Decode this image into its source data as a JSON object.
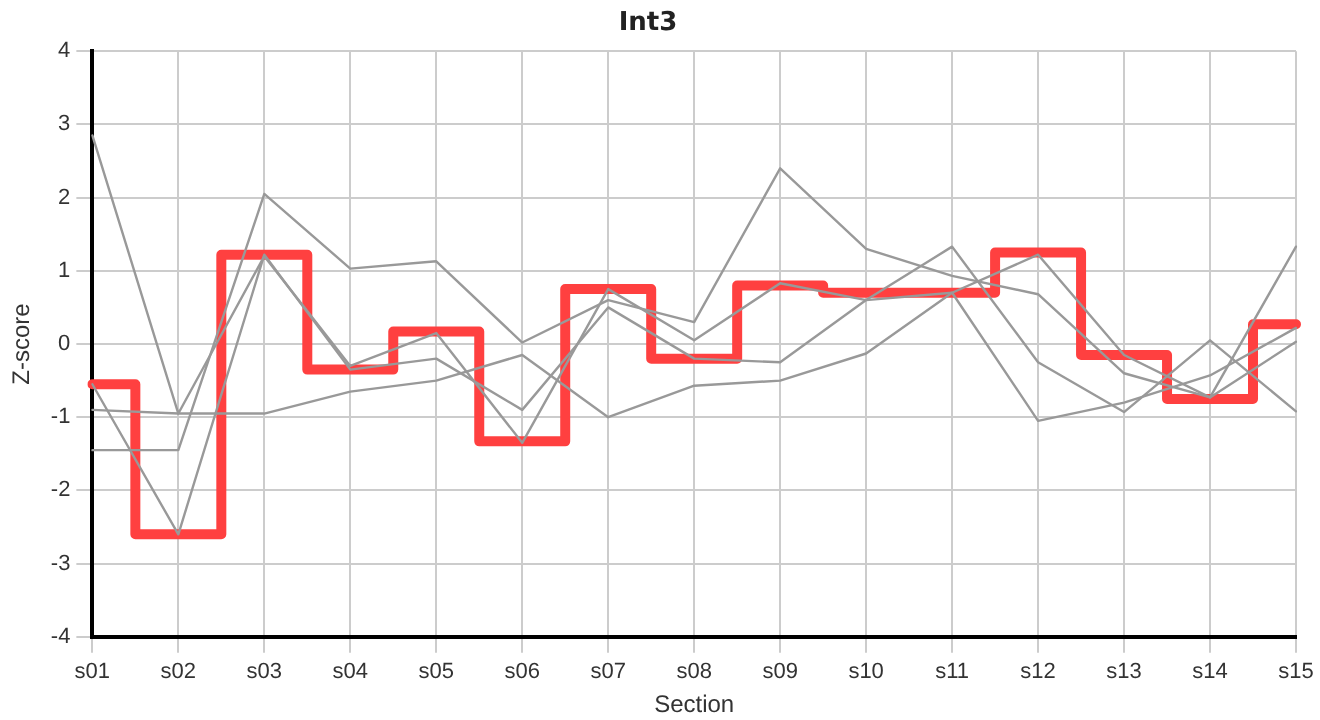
{
  "chart_data": {
    "type": "line",
    "title": "Int3",
    "xlabel": "Section",
    "ylabel": "Z-score",
    "categories": [
      "s01",
      "s02",
      "s03",
      "s04",
      "s05",
      "s06",
      "s07",
      "s08",
      "s09",
      "s10",
      "s11",
      "s12",
      "s13",
      "s14",
      "s15"
    ],
    "series": [
      {
        "color": "#999999",
        "values": [
          2.85,
          -0.95,
          1.2,
          -0.3,
          0.15,
          -1.35,
          0.75,
          0.05,
          0.83,
          0.6,
          0.7,
          1.22,
          -0.15,
          -0.73,
          0.03
        ]
      },
      {
        "color": "#999999",
        "values": [
          -1.45,
          -1.45,
          2.05,
          1.03,
          1.13,
          0.02,
          0.6,
          0.3,
          2.4,
          1.3,
          0.93,
          0.68,
          -0.4,
          -0.73,
          1.33
        ]
      },
      {
        "color": "#999999",
        "values": [
          -0.55,
          -2.6,
          1.22,
          -0.35,
          -0.2,
          -0.9,
          0.5,
          -0.2,
          -0.25,
          0.6,
          1.33,
          -0.25,
          -0.93,
          0.05,
          -0.92
        ]
      },
      {
        "color": "#999999",
        "values": [
          -0.9,
          -0.95,
          -0.95,
          -0.65,
          -0.5,
          -0.15,
          -1.0,
          -0.57,
          -0.5,
          -0.13,
          0.7,
          -1.05,
          -0.8,
          -0.43,
          0.22
        ]
      },
      {
        "type": "step",
        "color": "#ff4040",
        "values": [
          -0.55,
          -2.6,
          1.22,
          -0.35,
          0.17,
          -1.33,
          0.75,
          -0.2,
          0.8,
          0.7,
          0.7,
          1.25,
          -0.15,
          -0.75,
          0.27
        ]
      }
    ],
    "ylim": [
      -4,
      4
    ],
    "yticks": [
      -4,
      -3,
      -2,
      -1,
      0,
      1,
      2,
      3,
      4
    ],
    "grid": true,
    "legend": false,
    "marker": "none",
    "line_style": "solid"
  }
}
